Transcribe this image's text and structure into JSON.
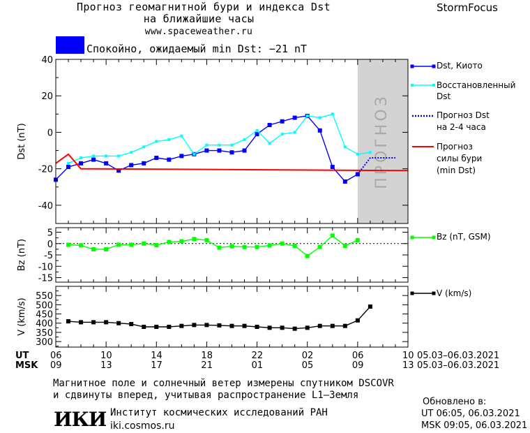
{
  "header": {
    "title_line1": "Прогноз геомагнитной бури и индекса Dst",
    "title_line2": "на ближайшие часы",
    "url": "www.spaceweather.ru",
    "brand": "StormFocus"
  },
  "status": {
    "color": "#0000ff",
    "text": "Спокойно, ожидаемый min Dst: −21 nT"
  },
  "legend": {
    "dst_kyoto": "Dst, Киото",
    "dst_restored_1": "Восстановленный",
    "dst_restored_2": "Dst",
    "dst_forecast_1": "Прогноз Dst",
    "dst_forecast_2": "на 2-4 часа",
    "storm_1": "Прогноз",
    "storm_2": "силы бури",
    "storm_3": "(min Dst)",
    "bz": "Bz (nT, GSM)",
    "v": "V (km/s)"
  },
  "forecast_band_label": "ПРОГНОЗ",
  "time_axis": {
    "ut_label": "UT",
    "msk_label": "MSK",
    "ut_ticks": [
      "06",
      "10",
      "14",
      "18",
      "22",
      "02",
      "06",
      "10"
    ],
    "msk_ticks": [
      "09",
      "13",
      "17",
      "21",
      "01",
      "05",
      "09",
      "13"
    ],
    "date_range": "05.03–06.03.2021"
  },
  "footer": {
    "note_line1": "Магнитное поле и солнечный ветер измерены спутником DSCOVR",
    "note_line2": "и сдвинуты вперед, учитывая распространение L1–Земля",
    "logo_text": "ИКИ",
    "institute": "Институт космических исследований РАН",
    "institute_url": "iki.cosmos.ru",
    "updated_label": "Обновлено в:",
    "updated_ut": "UT  06:05, 06.03.2021",
    "updated_msk": "MSK 09:05, 06.03.2021"
  },
  "chart_data": [
    {
      "type": "line",
      "name": "dst",
      "x_unit": "hours since 06 UT 05.03",
      "xlim": [
        0,
        28
      ],
      "ylim": [
        -50,
        40
      ],
      "ylabel": "Dst (nT)",
      "yticks": [
        -40,
        -20,
        0,
        20,
        40
      ],
      "forecast_region": [
        24,
        28
      ],
      "series": [
        {
          "name": "Dst, Киото",
          "color": "#0000ff",
          "x": [
            0,
            1,
            2,
            3,
            4,
            5,
            6,
            7,
            8,
            9,
            10,
            11,
            12,
            13,
            14,
            15,
            16,
            17,
            18,
            19,
            20,
            21,
            22,
            23,
            24
          ],
          "values": [
            -26,
            -19,
            -17,
            -15,
            -17,
            -21,
            -18,
            -17,
            -14,
            -15,
            -13,
            -12,
            -10,
            -10,
            -11,
            -10,
            -1,
            4,
            6,
            8,
            9,
            1,
            -19,
            -27,
            -23
          ]
        },
        {
          "name": "Восстановленный Dst",
          "color": "#00ffff",
          "x": [
            1,
            2,
            3,
            4,
            5,
            6,
            7,
            8,
            9,
            10,
            11,
            12,
            13,
            14,
            15,
            16,
            17,
            18,
            19,
            20,
            21,
            22,
            23,
            24,
            25
          ],
          "values": [
            -17,
            -14,
            -13,
            -13,
            -13,
            -11,
            -8,
            -5,
            -4,
            -2,
            -12,
            -7,
            -7,
            -7,
            -4,
            1,
            -6,
            -1,
            0,
            9,
            8,
            10,
            -8,
            -12,
            -11
          ]
        },
        {
          "name": "Прогноз Dst на 2-4 часа",
          "color": "#0000ff",
          "style": "dotted",
          "x": [
            24,
            25,
            26,
            27
          ],
          "values": [
            -23,
            -14,
            -14,
            -14
          ]
        },
        {
          "name": "Прогноз силы бури (min Dst)",
          "color": "#ff0000",
          "x": [
            0,
            1,
            2,
            3,
            28
          ],
          "values": [
            -17,
            -12,
            -20,
            -20,
            -21
          ]
        }
      ]
    },
    {
      "type": "line",
      "name": "bz",
      "xlim": [
        0,
        28
      ],
      "ylim": [
        -17,
        7
      ],
      "ylabel": "Bz (nT)",
      "yticks": [
        -15,
        -10,
        -5,
        0,
        5
      ],
      "series": [
        {
          "name": "Bz (nT, GSM)",
          "color": "#00ff00",
          "x": [
            1,
            2,
            3,
            4,
            5,
            6,
            7,
            8,
            9,
            10,
            11,
            12,
            13,
            14,
            15,
            16,
            17,
            18,
            19,
            20,
            21,
            22,
            23,
            24,
            25
          ],
          "values": [
            -0.5,
            -0.8,
            -2.5,
            -2.5,
            -0.5,
            -0.5,
            0,
            -0.7,
            0.7,
            1,
            2,
            1.5,
            -1.8,
            -1.2,
            -1.5,
            -1.5,
            -0.8,
            0,
            -1,
            -5.5,
            -1.5,
            3.5,
            -1,
            1.5,
            null
          ]
        }
      ]
    },
    {
      "type": "line",
      "name": "v",
      "xlim": [
        0,
        28
      ],
      "ylim": [
        270,
        600
      ],
      "ylabel": "V (km/s)",
      "yticks": [
        300,
        350,
        400,
        450,
        500,
        550
      ],
      "series": [
        {
          "name": "V (km/s)",
          "color": "#000000",
          "x": [
            1,
            2,
            3,
            4,
            5,
            6,
            7,
            8,
            9,
            10,
            11,
            12,
            13,
            14,
            15,
            16,
            17,
            18,
            19,
            20,
            21,
            22,
            23,
            24,
            25
          ],
          "values": [
            410,
            405,
            405,
            405,
            400,
            395,
            380,
            380,
            380,
            385,
            390,
            390,
            388,
            385,
            385,
            380,
            375,
            375,
            370,
            375,
            385,
            385,
            385,
            415,
            490
          ]
        }
      ]
    }
  ]
}
